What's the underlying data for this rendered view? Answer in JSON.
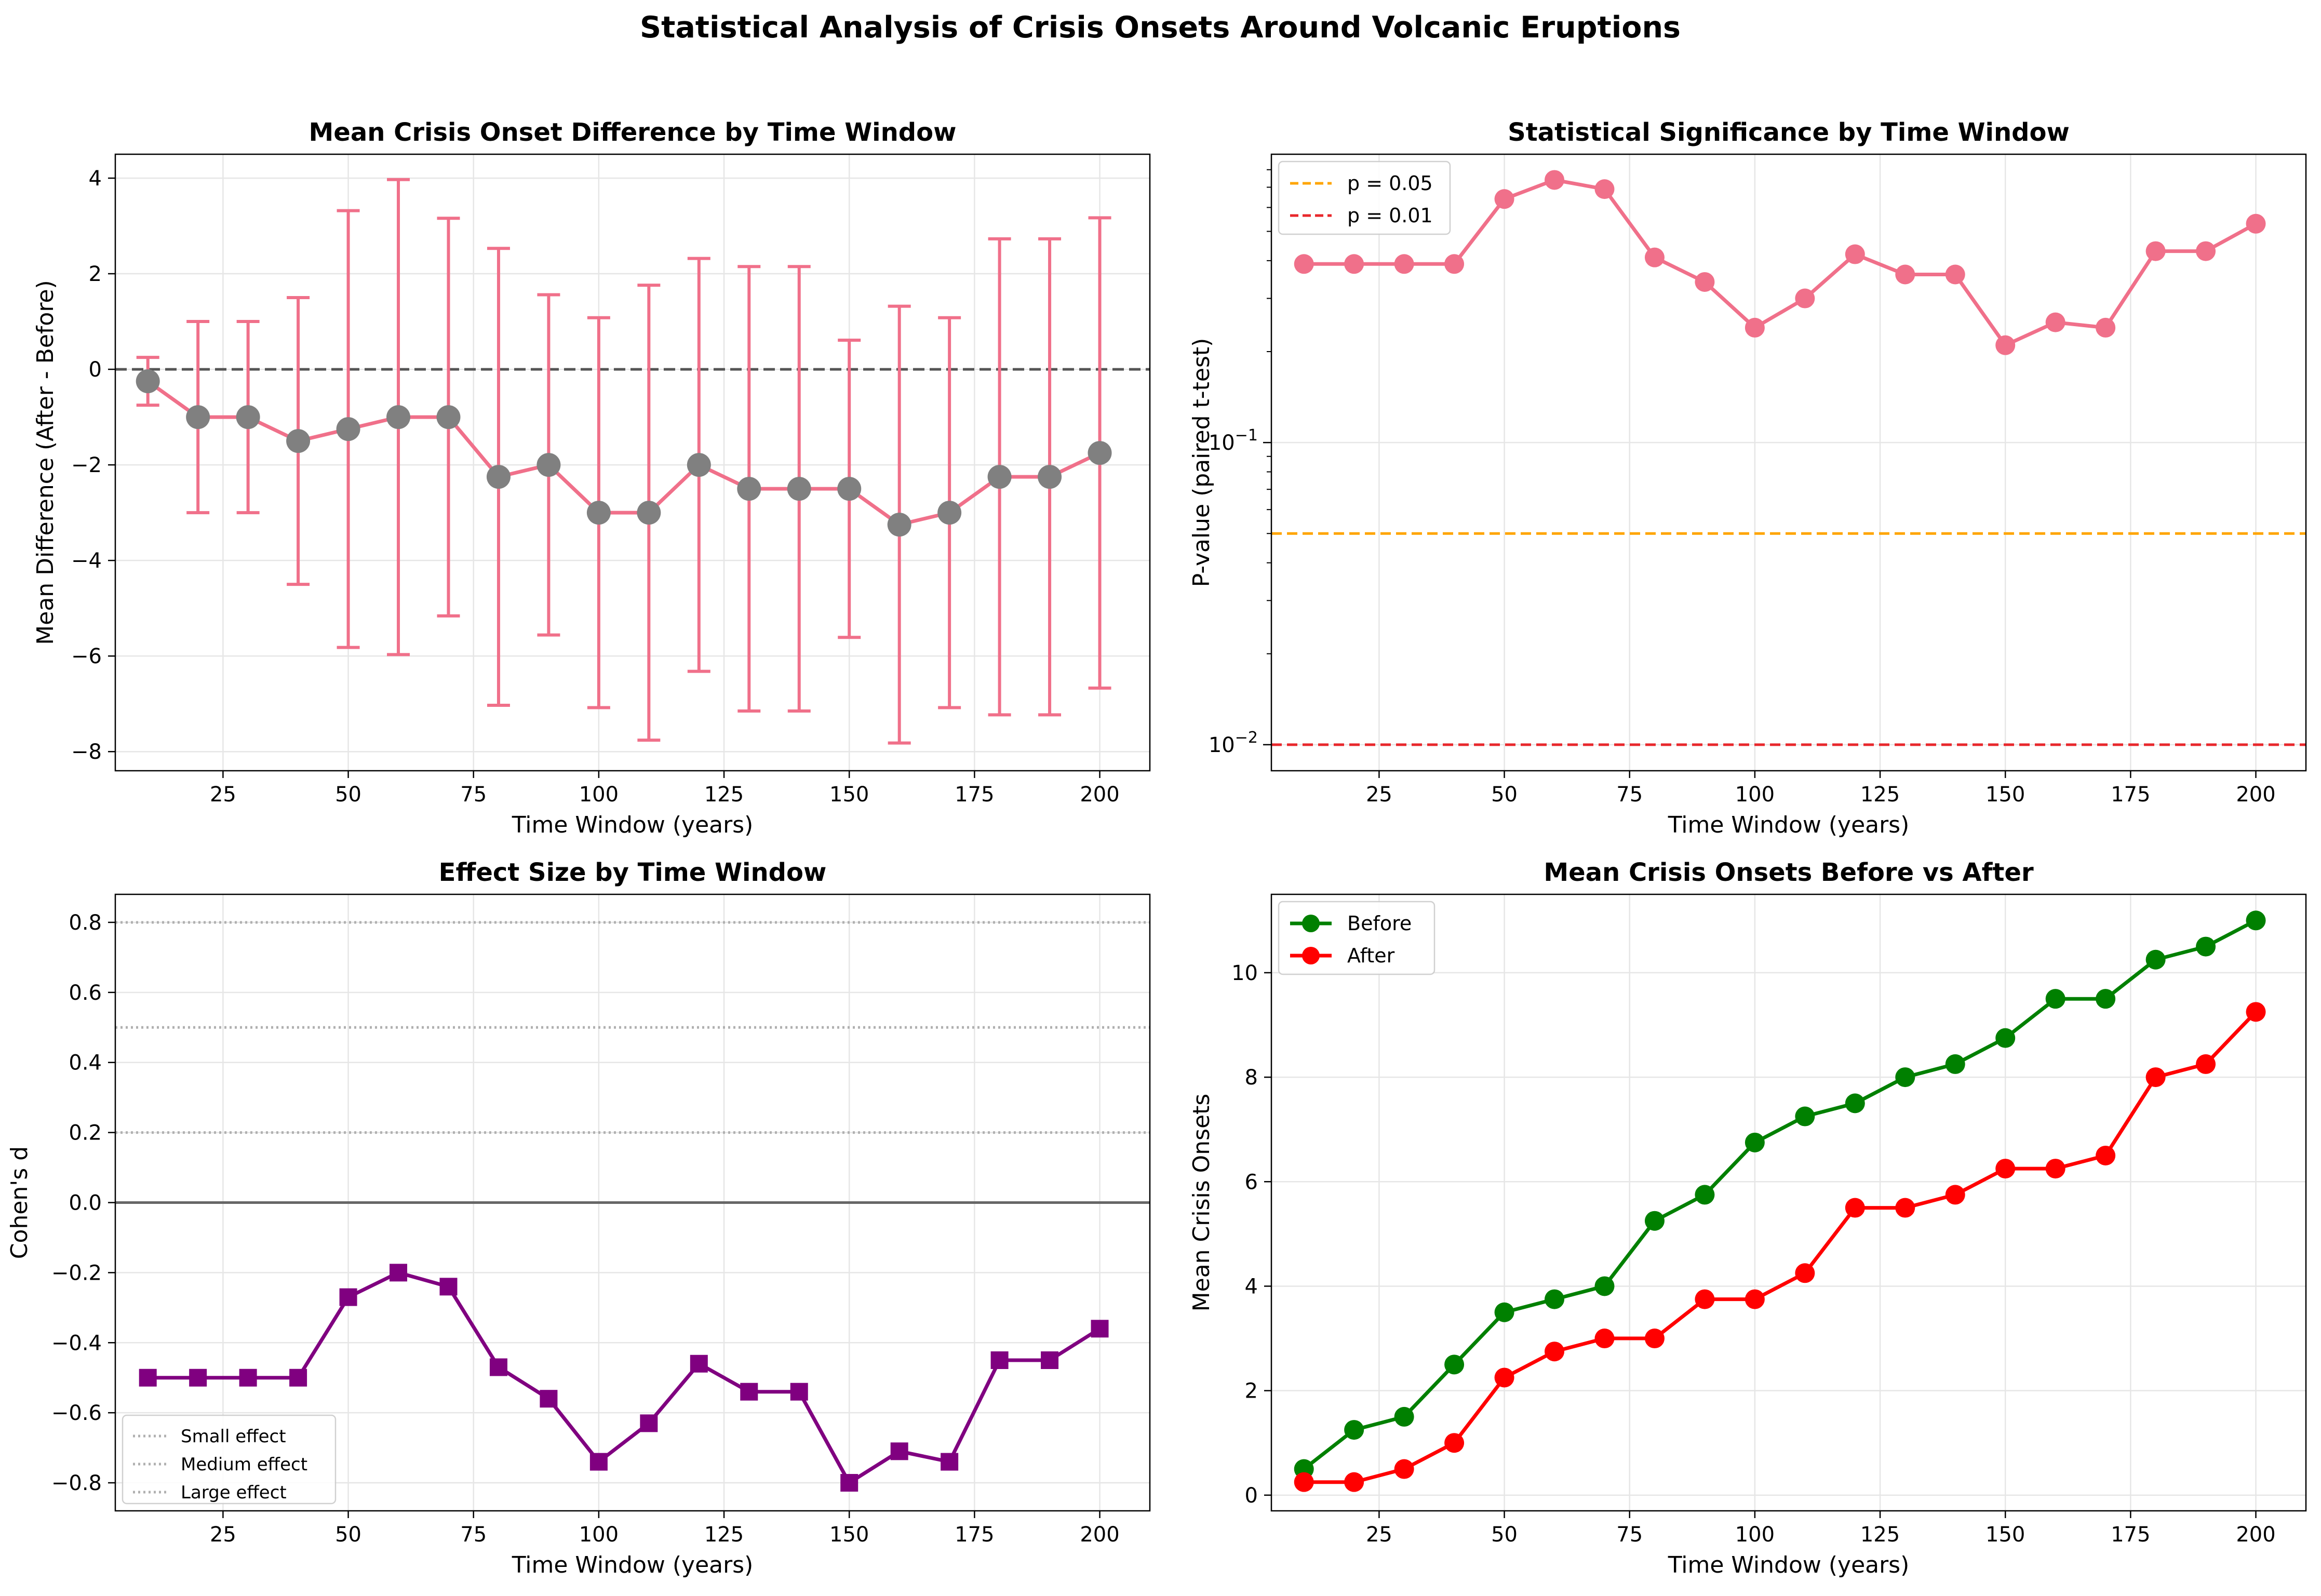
{
  "figure_title": "Statistical Analysis of Crisis Onsets Around Volcanic Eruptions",
  "colors": {
    "pink": "#f0708a",
    "gray_marker": "#808080",
    "purple": "#800080",
    "green": "#008000",
    "red": "#ff0000",
    "orange_ref": "#ffa500",
    "red_ref": "#e8282c",
    "ref_gray": "#b0b0b0",
    "zero_line": "#555555"
  },
  "chart_data": [
    {
      "type": "line",
      "title": "Mean Crisis Onset Difference by Time Window",
      "xlabel": "Time Window (years)",
      "ylabel": "Mean Difference (After - Before)",
      "xlim": [
        3.5,
        210
      ],
      "ylim": [
        -8.4,
        4.5
      ],
      "xticks": [
        25,
        50,
        75,
        100,
        125,
        150,
        175,
        200
      ],
      "yticks": [
        -8,
        -6,
        -4,
        -2,
        0,
        2,
        4
      ],
      "grid": true,
      "x": [
        10,
        20,
        30,
        40,
        50,
        60,
        70,
        80,
        90,
        100,
        110,
        120,
        130,
        140,
        150,
        160,
        170,
        180,
        190,
        200
      ],
      "series": [
        {
          "values": [
            -0.25,
            -1.0,
            -1.0,
            -1.5,
            -1.25,
            -1.0,
            -1.0,
            -2.25,
            -2.0,
            -3.0,
            -3.0,
            -2.0,
            -2.5,
            -2.5,
            -2.5,
            -3.25,
            -3.0,
            -2.25,
            -2.25,
            -1.75
          ],
          "errors": [
            0.5,
            2.0,
            2.0,
            3.0,
            4.57,
            4.97,
            4.16,
            4.78,
            3.56,
            4.08,
            4.76,
            4.32,
            4.65,
            4.65,
            3.11,
            4.57,
            4.08,
            4.98,
            4.98,
            4.92
          ]
        }
      ],
      "reference_lines": [
        {
          "y": 0,
          "style": "dashed"
        }
      ]
    },
    {
      "type": "line",
      "title": "Statistical Significance by Time Window",
      "xlabel": "Time Window (years)",
      "ylabel": "P-value (paired t-test)",
      "yscale": "log",
      "xlim": [
        3.5,
        210
      ],
      "ylim": [
        0.0082,
        0.9
      ],
      "xticks": [
        25,
        50,
        75,
        100,
        125,
        150,
        175,
        200
      ],
      "yticks": [
        "10^-2",
        "10^-1"
      ],
      "grid": true,
      "x": [
        10,
        20,
        30,
        40,
        50,
        60,
        70,
        80,
        90,
        100,
        110,
        120,
        130,
        140,
        150,
        160,
        170,
        180,
        190,
        200
      ],
      "series": [
        {
          "values": [
            0.39,
            0.39,
            0.39,
            0.39,
            0.64,
            0.74,
            0.69,
            0.41,
            0.34,
            0.24,
            0.3,
            0.42,
            0.36,
            0.36,
            0.21,
            0.25,
            0.24,
            0.43,
            0.43,
            0.53
          ]
        }
      ],
      "reference_lines": [
        {
          "y": 0.05,
          "label": "p = 0.05",
          "style": "dashed"
        },
        {
          "y": 0.01,
          "label": "p = 0.01",
          "style": "dashed"
        }
      ],
      "legend_position": "upper-left"
    },
    {
      "type": "line",
      "title": "Effect Size by Time Window",
      "xlabel": "Time Window (years)",
      "ylabel": "Cohen's d",
      "xlim": [
        3.5,
        210
      ],
      "ylim": [
        -0.88,
        0.88
      ],
      "xticks": [
        25,
        50,
        75,
        100,
        125,
        150,
        175,
        200
      ],
      "yticks": [
        -0.8,
        -0.6,
        -0.4,
        -0.2,
        0.0,
        0.2,
        0.4,
        0.6,
        0.8
      ],
      "ytick_labels": [
        "−0.8",
        "−0.6",
        "−0.4",
        "−0.2",
        "0.0",
        "0.2",
        "0.4",
        "0.6",
        "0.8"
      ],
      "grid": true,
      "x": [
        10,
        20,
        30,
        40,
        50,
        60,
        70,
        80,
        90,
        100,
        110,
        120,
        130,
        140,
        150,
        160,
        170,
        180,
        190,
        200
      ],
      "series": [
        {
          "values": [
            -0.5,
            -0.5,
            -0.5,
            -0.5,
            -0.27,
            -0.2,
            -0.24,
            -0.47,
            -0.56,
            -0.74,
            -0.63,
            -0.46,
            -0.54,
            -0.54,
            -0.8,
            -0.71,
            -0.74,
            -0.45,
            -0.45,
            -0.36
          ]
        }
      ],
      "reference_lines": [
        {
          "y": 0.2,
          "label": "Small effect",
          "style": "dotted"
        },
        {
          "y": 0.5,
          "label": "Medium effect",
          "style": "dotted"
        },
        {
          "y": 0.8,
          "label": "Large effect",
          "style": "dotted"
        },
        {
          "y": 0.0,
          "style": "solid"
        }
      ],
      "legend_position": "lower-left"
    },
    {
      "type": "line",
      "title": "Mean Crisis Onsets Before vs After",
      "xlabel": "Time Window (years)",
      "ylabel": "Mean Crisis Onsets",
      "xlim": [
        3.5,
        210
      ],
      "ylim": [
        -0.3,
        11.5
      ],
      "xticks": [
        25,
        50,
        75,
        100,
        125,
        150,
        175,
        200
      ],
      "yticks": [
        0,
        2,
        4,
        6,
        8,
        10
      ],
      "grid": true,
      "x": [
        10,
        20,
        30,
        40,
        50,
        60,
        70,
        80,
        90,
        100,
        110,
        120,
        130,
        140,
        150,
        160,
        170,
        180,
        190,
        200
      ],
      "series": [
        {
          "name": "Before",
          "values": [
            0.5,
            1.25,
            1.5,
            2.5,
            3.5,
            3.75,
            4.0,
            5.25,
            5.75,
            6.75,
            7.25,
            7.5,
            8.0,
            8.25,
            8.75,
            9.5,
            9.5,
            10.25,
            10.5,
            11.0
          ]
        },
        {
          "name": "After",
          "values": [
            0.25,
            0.25,
            0.5,
            1.0,
            2.25,
            2.75,
            3.0,
            3.0,
            3.75,
            3.75,
            4.25,
            5.5,
            5.5,
            5.75,
            6.25,
            6.25,
            6.5,
            8.0,
            8.25,
            9.25
          ]
        }
      ],
      "legend_position": "upper-left"
    }
  ]
}
